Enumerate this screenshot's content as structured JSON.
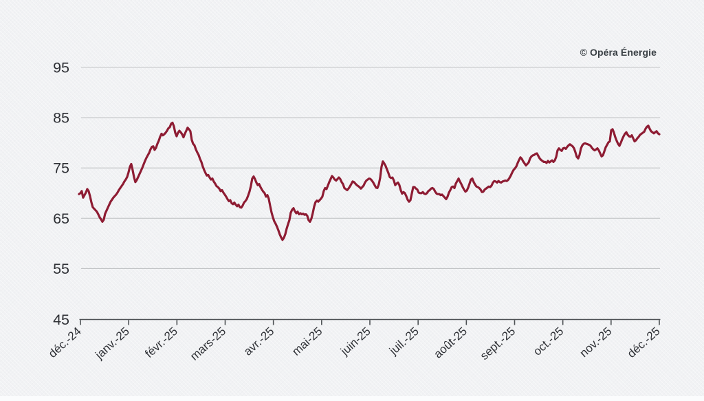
{
  "watermark": "© Opéra Énergie",
  "colors": {
    "background": "#f1f2f4",
    "line": "#8e1c33",
    "gridline": "#c2c4c6",
    "axis": "#4d5154",
    "tick_text": "#2f3136",
    "watermark_text": "#3a4045",
    "bottom_strip": "#fbfcfd"
  },
  "chart_data": {
    "type": "line",
    "title": "",
    "xlabel": "",
    "ylabel": "",
    "grid": "horizontal",
    "legend": "none",
    "x_tick_labels": [
      "déc.-24",
      "janv.-25",
      "févr.-25",
      "mars-25",
      "avr.-25",
      "mai-25",
      "juin-25",
      "juil.-25",
      "août-25",
      "sept.-25",
      "oct.-25",
      "nov.-25",
      "déc.-25"
    ],
    "y_tick_labels": [
      "45",
      "55",
      "65",
      "75",
      "85",
      "95"
    ],
    "y_tick_values": [
      45,
      55,
      65,
      75,
      85,
      95
    ],
    "y_gridline_values": [
      55,
      65,
      75,
      85,
      95
    ],
    "ylim": [
      45,
      95
    ],
    "x_unit": "months",
    "series": [
      {
        "x_start_months": -0.03,
        "x_end_months": 12.0,
        "values": [
          69.8,
          70.0,
          70.4,
          69.1,
          69.6,
          70.1,
          70.8,
          70.4,
          69.4,
          68.2,
          67.2,
          66.9,
          66.6,
          66.3,
          65.8,
          65.2,
          64.8,
          64.3,
          64.7,
          65.9,
          66.5,
          67.1,
          67.7,
          68.3,
          68.7,
          69.1,
          69.4,
          69.7,
          70.1,
          70.6,
          71.0,
          71.4,
          71.8,
          72.3,
          72.7,
          73.2,
          74.1,
          75.2,
          75.8,
          74.6,
          73.2,
          72.2,
          72.6,
          73.2,
          73.8,
          74.4,
          75.0,
          75.7,
          76.4,
          77.0,
          77.5,
          78.0,
          78.7,
          79.2,
          79.3,
          78.6,
          79.0,
          79.8,
          80.4,
          81.2,
          81.8,
          81.5,
          81.7,
          82.0,
          82.4,
          82.9,
          83.1,
          83.8,
          84.0,
          83.3,
          82.0,
          81.3,
          82.0,
          82.4,
          82.1,
          81.7,
          81.1,
          81.8,
          82.4,
          83.0,
          82.7,
          82.3,
          80.6,
          79.8,
          79.5,
          78.7,
          78.1,
          77.6,
          76.8,
          76.2,
          75.3,
          74.6,
          74.0,
          73.5,
          73.6,
          73.1,
          72.7,
          72.9,
          72.3,
          71.9,
          71.4,
          71.2,
          70.9,
          70.4,
          70.6,
          70.1,
          69.7,
          69.3,
          68.8,
          68.4,
          68.6,
          68.0,
          67.8,
          68.1,
          67.7,
          67.4,
          67.7,
          67.2,
          67.1,
          67.5,
          68.1,
          68.4,
          68.8,
          69.5,
          70.3,
          71.4,
          72.9,
          73.3,
          72.8,
          72.1,
          71.6,
          71.8,
          71.2,
          70.7,
          70.3,
          70.0,
          69.3,
          69.6,
          68.9,
          67.5,
          66.2,
          65.2,
          64.4,
          63.9,
          63.3,
          62.6,
          61.8,
          61.2,
          60.7,
          61.1,
          61.8,
          62.9,
          63.8,
          64.6,
          66.1,
          66.7,
          67.0,
          66.4,
          66.0,
          66.3,
          65.8,
          66.0,
          65.8,
          65.9,
          65.7,
          65.8,
          65.5,
          64.6,
          64.3,
          64.9,
          66.0,
          67.3,
          68.2,
          68.5,
          68.3,
          68.6,
          68.9,
          69.3,
          70.4,
          71.0,
          70.8,
          71.5,
          72.2,
          72.8,
          73.4,
          73.1,
          72.7,
          72.5,
          72.8,
          73.1,
          72.8,
          72.2,
          71.8,
          71.0,
          70.8,
          70.6,
          70.9,
          71.3,
          71.8,
          72.3,
          72.2,
          71.9,
          71.6,
          71.4,
          71.2,
          70.9,
          71.2,
          71.5,
          72.1,
          72.5,
          72.7,
          72.9,
          72.8,
          72.5,
          72.1,
          71.6,
          71.1,
          71.0,
          71.7,
          73.0,
          75.2,
          76.3,
          75.9,
          75.4,
          74.7,
          74.0,
          73.2,
          73.0,
          73.1,
          72.5,
          71.6,
          71.9,
          72.1,
          71.6,
          70.6,
          69.9,
          70.2,
          70.0,
          69.4,
          68.7,
          68.3,
          68.6,
          69.9,
          71.2,
          71.2,
          70.9,
          70.7,
          70.1,
          70.0,
          70.0,
          70.2,
          69.9,
          69.8,
          70.0,
          70.4,
          70.6,
          70.9,
          71.0,
          70.8,
          70.3,
          69.9,
          69.8,
          69.8,
          69.6,
          69.7,
          69.4,
          69.1,
          68.8,
          69.3,
          70.1,
          70.6,
          71.2,
          71.3,
          71.0,
          71.9,
          72.4,
          72.9,
          72.3,
          71.8,
          71.2,
          70.7,
          70.3,
          70.5,
          71.1,
          71.9,
          72.7,
          72.9,
          72.2,
          71.7,
          71.3,
          71.2,
          71.0,
          70.7,
          70.2,
          70.3,
          70.7,
          70.9,
          71.1,
          71.3,
          71.2,
          71.5,
          72.1,
          72.4,
          72.3,
          72.1,
          72.4,
          72.2,
          72.1,
          72.3,
          72.4,
          72.5,
          72.4,
          72.6,
          73.0,
          73.5,
          74.1,
          74.6,
          74.9,
          75.3,
          76.0,
          76.6,
          77.1,
          76.8,
          76.3,
          75.9,
          75.5,
          75.8,
          76.1,
          76.9,
          77.3,
          77.5,
          77.6,
          77.8,
          77.9,
          77.4,
          76.9,
          76.6,
          76.4,
          76.2,
          76.2,
          76.0,
          76.4,
          76.1,
          76.3,
          76.5,
          76.2,
          76.5,
          77.2,
          78.5,
          78.9,
          78.6,
          78.4,
          78.9,
          79.0,
          78.8,
          79.2,
          79.5,
          79.7,
          79.5,
          79.3,
          78.9,
          78.1,
          77.2,
          76.9,
          77.6,
          78.9,
          79.5,
          79.8,
          79.9,
          79.8,
          79.7,
          79.6,
          79.4,
          79.0,
          78.7,
          78.5,
          78.7,
          78.9,
          78.5,
          77.9,
          77.3,
          77.5,
          78.3,
          79.1,
          79.6,
          80.1,
          80.3,
          82.5,
          82.7,
          82.0,
          81.1,
          80.4,
          79.8,
          79.4,
          80.0,
          80.7,
          81.3,
          81.8,
          82.1,
          81.6,
          81.3,
          81.2,
          81.5,
          80.9,
          80.3,
          80.5,
          80.9,
          81.2,
          81.6,
          81.8,
          82.0,
          82.2,
          82.8,
          83.2,
          83.4,
          82.8,
          82.3,
          82.1,
          81.9,
          82.1,
          82.3,
          81.9,
          81.7
        ]
      }
    ]
  }
}
